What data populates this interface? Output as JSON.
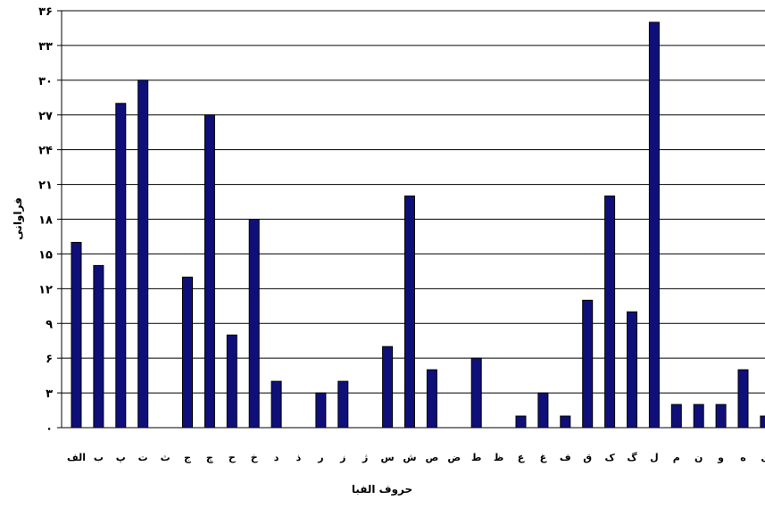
{
  "chart_data": {
    "type": "bar",
    "xlabel": "حروف الفبا",
    "ylabel": "فراوانی",
    "ylim": [
      0,
      36
    ],
    "yticks": [
      0,
      3,
      6,
      9,
      12,
      15,
      18,
      21,
      24,
      27,
      30,
      33,
      36
    ],
    "ytick_labels": [
      "۰",
      "۳",
      "۶",
      "۹",
      "۱۲",
      "۱۵",
      "۱۸",
      "۲۱",
      "۲۴",
      "۲۷",
      "۳۰",
      "۳۳",
      "۳۶"
    ],
    "grid": true,
    "legend": false,
    "bar_color": "#0f0f7a",
    "categories": [
      "الف",
      "ب",
      "پ",
      "ت",
      "ث",
      "ج",
      "چ",
      "ح",
      "خ",
      "د",
      "ذ",
      "ر",
      "ز",
      "ژ",
      "س",
      "ش",
      "ص",
      "ض",
      "ط",
      "ظ",
      "ع",
      "غ",
      "ف",
      "ق",
      "ک",
      "گ",
      "ل",
      "م",
      "ن",
      "و",
      "ه",
      "ی"
    ],
    "values": [
      16,
      14,
      28,
      30,
      0,
      13,
      27,
      8,
      18,
      4,
      0,
      3,
      4,
      0,
      7,
      20,
      5,
      0,
      6,
      0,
      1,
      3,
      1,
      11,
      20,
      10,
      35,
      2,
      2,
      2,
      5,
      1
    ]
  }
}
